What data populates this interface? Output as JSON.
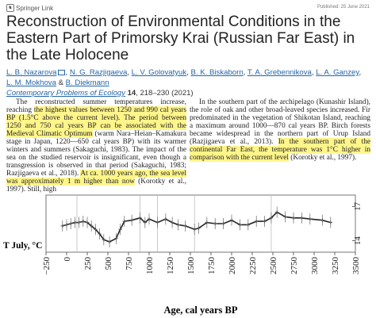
{
  "header": {
    "brand": "Springer Link",
    "published": "Published: 25 June 2021"
  },
  "article": {
    "title": "Reconstruction of Environmental Conditions in the Eastern Part of Primorsky Krai (Russian Far East) in the Late Holocene",
    "authors": [
      "L. B. Nazarova",
      "N. G. Razjigaeva",
      "L. V. Golovatyuk",
      "B. K. Biskaborn",
      "T. A. Grebennikova",
      "L. A. Ganzey",
      "L. M. Mokhova",
      "B. Diekmann"
    ],
    "journal": "Contemporary Problems of Ecology",
    "volume": "14",
    "pages": ", 218–230 (2021)"
  },
  "text": {
    "col1": {
      "s1": "The reconstructed summer temperatures increase, reaching ",
      "s2": "the highest values between 1250 and 990 cal years BP (1.5°C above the current level). The period between 1250 and 750 cal years BP can be associated with the Medieval Climatic Optimum",
      "s3": " (warm Nara–Heian–Kamakura stage in Japan, 1220—650 cal years BP) with its warmer winters and summers (Sakaguchi, 1983). The impact of the sea on the studied reservoir is insignificant, even though a transgression is observed in that period (Sakaguchi, 1983; Razjigaeva et al., 2018). ",
      "s4": "At ca. 1000 years ago, the sea level was approximately 1 m higher than now",
      "s5": " (Korotky et al., 1997). Still, high"
    },
    "col2": {
      "s1": "In the southern part of the archipelago (Kunashir Island), the role of oak and other broad-leaved species increased. Fir predominated in the vegetation of Shikotan Island, reaching a maximum around 1000—870 cal years BP. Birch forests became widespread in the northern part of Urup Island (Razjigaeva et al., 2013). ",
      "s2": "In the southern part of the continental Far East, the temperature was 1°C higher in comparison with the current level",
      "s3": " (Korotky et al., 1997)."
    }
  },
  "figure": {
    "ylabel": "T July, °C",
    "xlabel": "Age, cal years BP",
    "xticks": [
      "−250",
      "0",
      "250",
      "500",
      "750",
      "1000",
      "1250",
      "1500",
      "1750",
      "2000",
      "2250",
      "2500",
      "2750",
      "3000",
      "3250",
      "3500"
    ],
    "yticks": [
      "14",
      "17"
    ]
  },
  "chart_data": {
    "type": "line",
    "xlabel": "Age, cal years BP",
    "ylabel": "T July, °C",
    "xlim": [
      -250,
      3500
    ],
    "ylim": [
      13,
      18
    ],
    "xticks": [
      -250,
      0,
      250,
      500,
      750,
      1000,
      1250,
      1500,
      1750,
      2000,
      2250,
      2500,
      2750,
      3000,
      3250,
      3500
    ],
    "yticks": [
      14,
      17
    ],
    "gridlines_x": [
      125,
      890,
      1100,
      1550,
      2480
    ],
    "series": [
      {
        "x": [
          -50,
          0,
          50,
          100,
          150,
          200,
          250,
          300,
          350,
          400,
          450,
          520,
          600,
          650,
          700,
          790,
          890,
          950,
          1000,
          1100,
          1200,
          1280,
          1350,
          1440,
          1550,
          1600,
          1700,
          1800,
          1900,
          2000,
          2100,
          2200,
          2300,
          2400,
          2480,
          2550,
          2650,
          2750,
          2850,
          2950,
          3100,
          3200
        ],
        "y": [
          15.3,
          15.4,
          15.5,
          15.6,
          15.6,
          15.7,
          15.6,
          15.3,
          15.0,
          14.6,
          14.1,
          13.9,
          14.2,
          15.0,
          15.7,
          15.8,
          16.0,
          15.6,
          15.9,
          15.6,
          15.9,
          15.6,
          15.4,
          15.3,
          15.0,
          15.1,
          15.6,
          15.5,
          15.5,
          15.8,
          15.4,
          15.4,
          15.7,
          15.7,
          16.0,
          16.5,
          16.1,
          16.0,
          16.0,
          15.9,
          15.8,
          15.6
        ]
      }
    ]
  }
}
